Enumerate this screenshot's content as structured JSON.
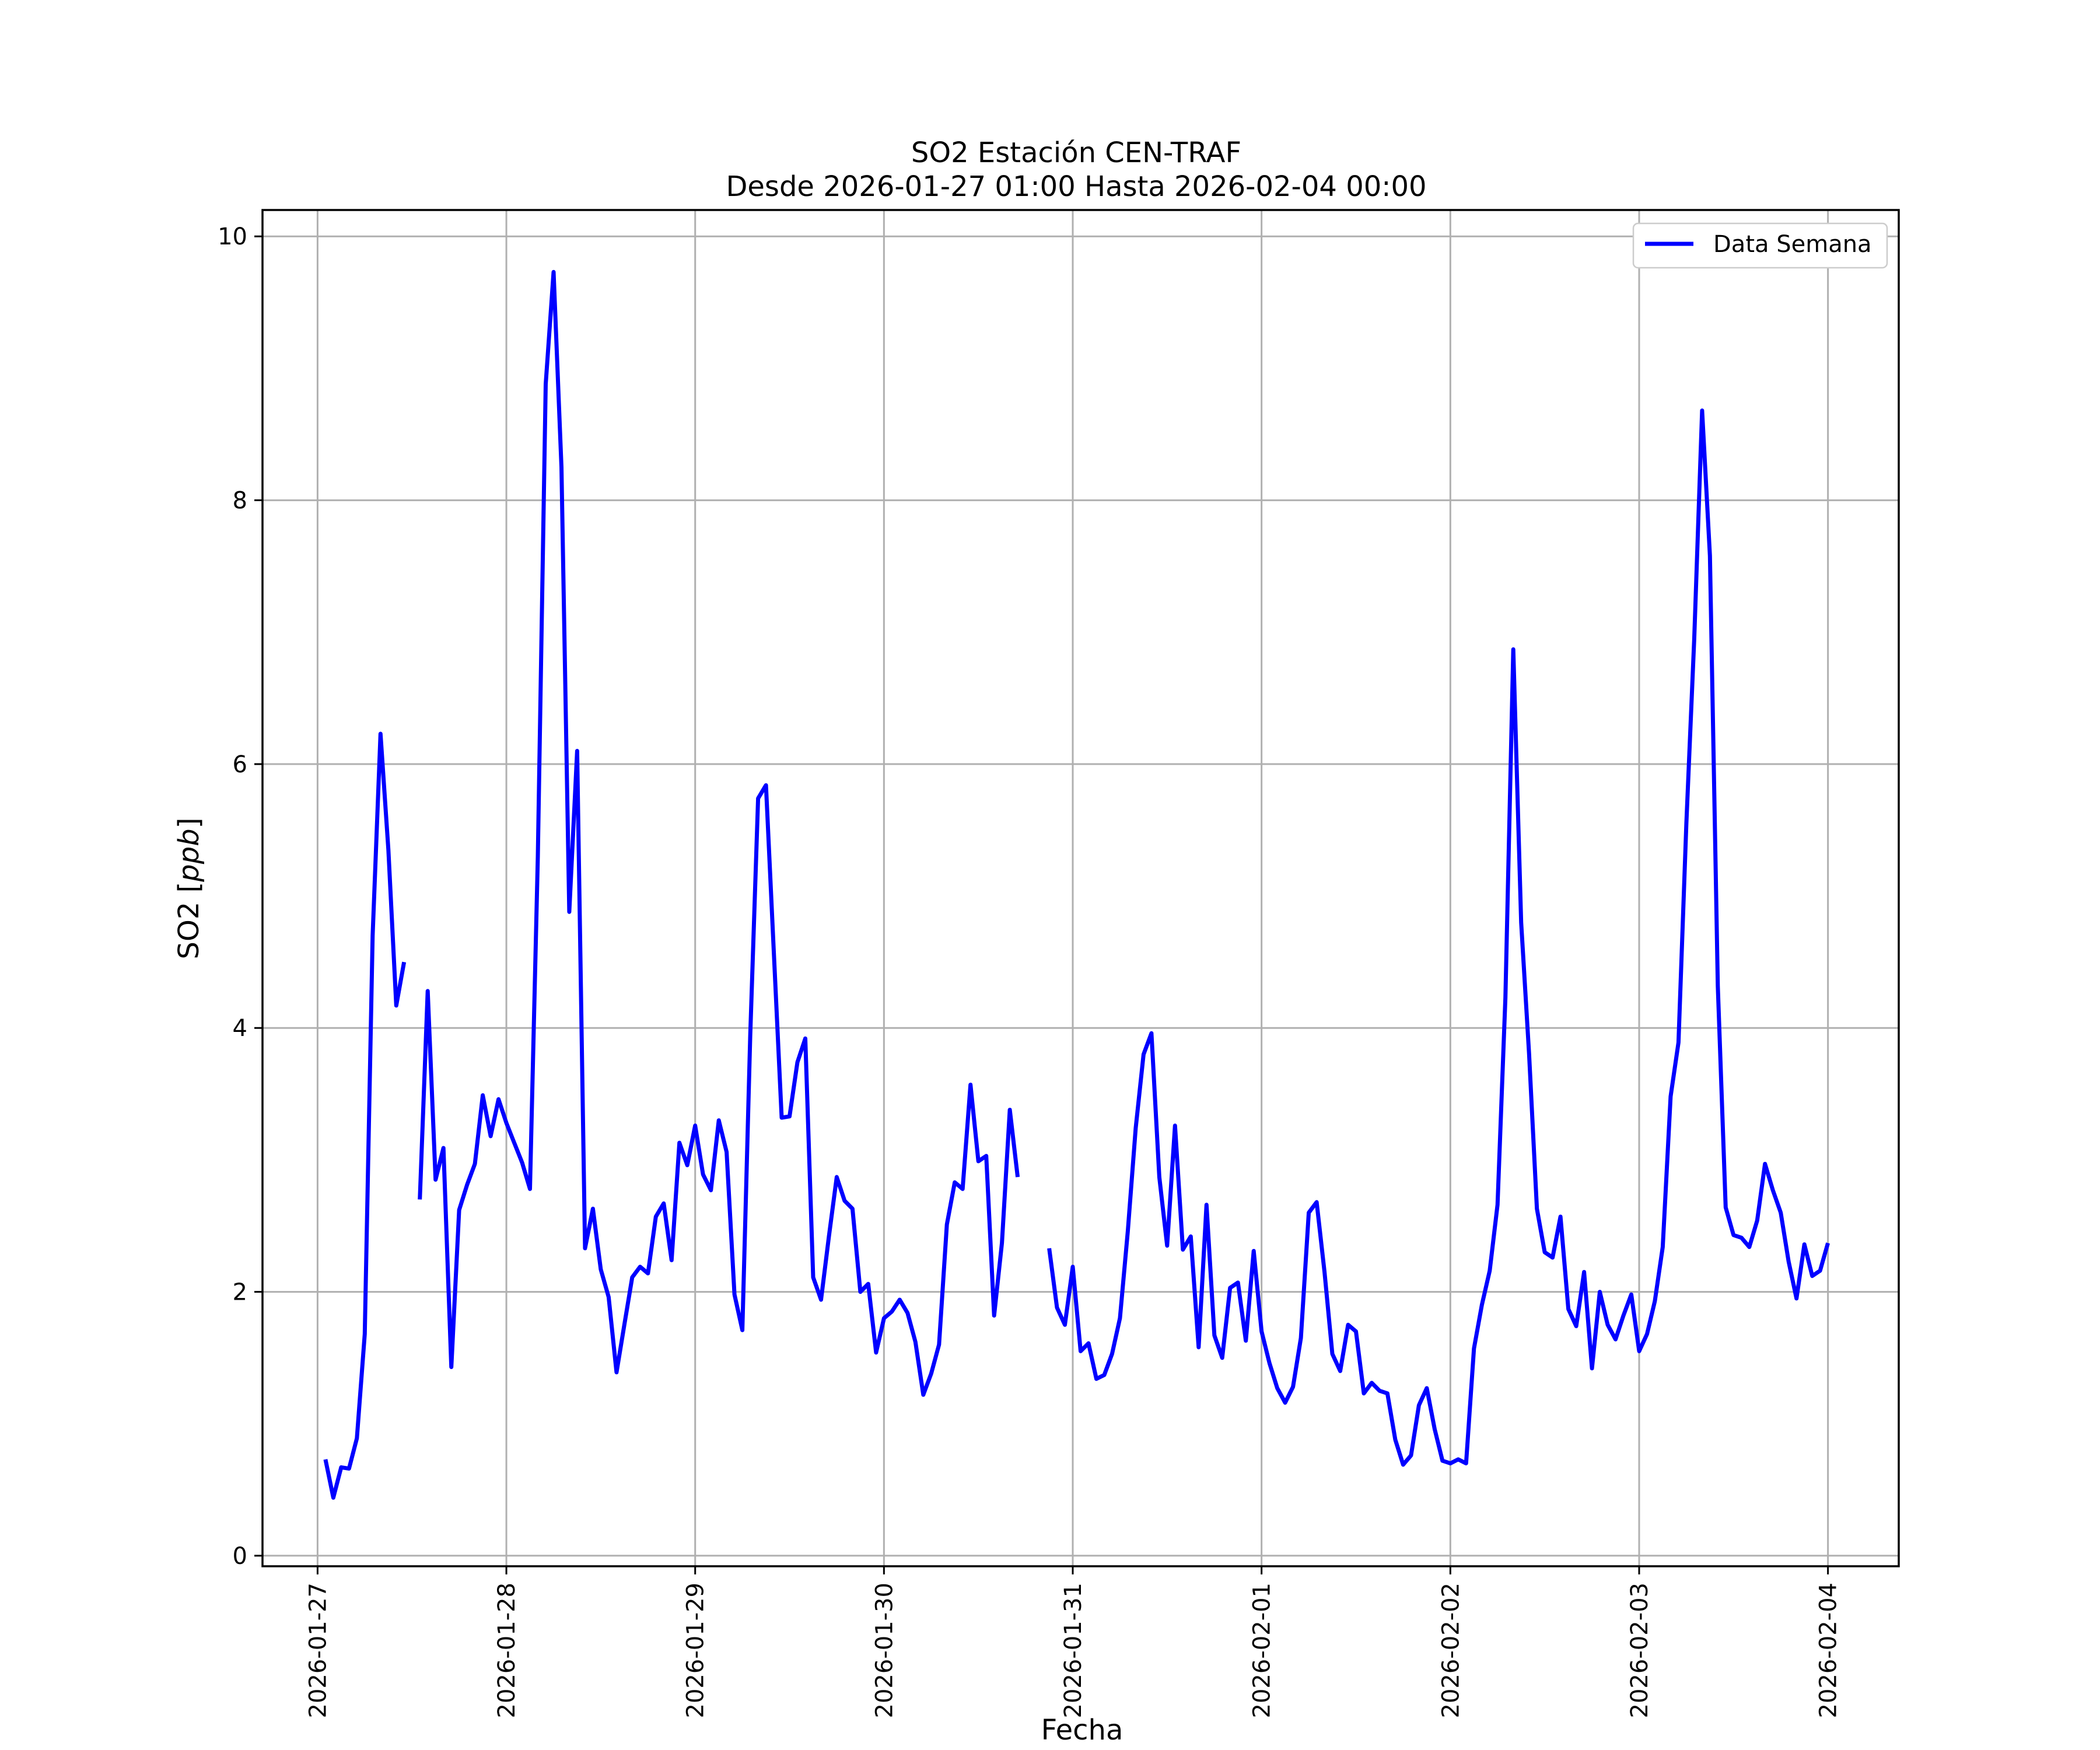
{
  "chart_data": {
    "type": "line",
    "title_lines": [
      "SO2 Estación CEN-TRAF",
      "Desde 2026-01-27 01:00 Hasta 2026-02-04 00:00"
    ],
    "xlabel": "Fecha",
    "ylabel": "SO2 [ppb]",
    "ylim": [
      -0.08,
      10.2
    ],
    "yticks": [
      0,
      2,
      4,
      6,
      8,
      10
    ],
    "xlim": [
      "2026-01-26 17:00",
      "2026-02-04 09:00"
    ],
    "xticks": [
      "2026-01-27",
      "2026-01-28",
      "2026-01-29",
      "2026-01-30",
      "2026-01-31",
      "2026-02-01",
      "2026-02-02",
      "2026-02-03",
      "2026-02-04"
    ],
    "grid": true,
    "legend_position": "upper right",
    "colors": {
      "series": "#0000ff"
    },
    "series": [
      {
        "name": "Data Semana",
        "points": [
          [
            "2026-01-27 01:00",
            0.73
          ],
          [
            "2026-01-27 02:00",
            0.44
          ],
          [
            "2026-01-27 03:00",
            0.67
          ],
          [
            "2026-01-27 04:00",
            0.66
          ],
          [
            "2026-01-27 05:00",
            0.89
          ],
          [
            "2026-01-27 06:00",
            1.68
          ],
          [
            "2026-01-27 07:00",
            4.7
          ],
          [
            "2026-01-27 08:00",
            6.23
          ],
          [
            "2026-01-27 09:00",
            5.35
          ],
          [
            "2026-01-27 10:00",
            4.17
          ],
          [
            "2026-01-27 11:00",
            4.5
          ],
          [
            "2026-01-27 12:00",
            null
          ],
          [
            "2026-01-27 13:00",
            2.7
          ],
          [
            "2026-01-27 14:00",
            4.28
          ],
          [
            "2026-01-27 15:00",
            2.85
          ],
          [
            "2026-01-27 16:00",
            3.09
          ],
          [
            "2026-01-27 17:00",
            1.43
          ],
          [
            "2026-01-27 18:00",
            2.62
          ],
          [
            "2026-01-27 19:00",
            2.81
          ],
          [
            "2026-01-27 20:00",
            2.97
          ],
          [
            "2026-01-27 21:00",
            3.49
          ],
          [
            "2026-01-27 22:00",
            3.18
          ],
          [
            "2026-01-27 23:00",
            3.46
          ],
          [
            "2026-01-28 00:00",
            3.28
          ],
          [
            "2026-01-28 01:00",
            3.13
          ],
          [
            "2026-01-28 02:00",
            2.98
          ],
          [
            "2026-01-28 03:00",
            2.78
          ],
          [
            "2026-01-28 04:00",
            5.3
          ],
          [
            "2026-01-28 05:00",
            8.88
          ],
          [
            "2026-01-28 06:00",
            9.73
          ],
          [
            "2026-01-28 07:00",
            8.25
          ],
          [
            "2026-01-28 08:00",
            4.88
          ],
          [
            "2026-01-28 09:00",
            6.1
          ],
          [
            "2026-01-28 10:00",
            2.33
          ],
          [
            "2026-01-28 11:00",
            2.63
          ],
          [
            "2026-01-28 12:00",
            2.17
          ],
          [
            "2026-01-28 13:00",
            1.96
          ],
          [
            "2026-01-28 14:00",
            1.39
          ],
          [
            "2026-01-28 15:00",
            1.75
          ],
          [
            "2026-01-28 16:00",
            2.11
          ],
          [
            "2026-01-28 17:00",
            2.19
          ],
          [
            "2026-01-28 18:00",
            2.14
          ],
          [
            "2026-01-28 19:00",
            2.57
          ],
          [
            "2026-01-28 20:00",
            2.67
          ],
          [
            "2026-01-28 21:00",
            2.24
          ],
          [
            "2026-01-28 22:00",
            3.13
          ],
          [
            "2026-01-28 23:00",
            2.96
          ],
          [
            "2026-01-29 00:00",
            3.26
          ],
          [
            "2026-01-29 01:00",
            2.89
          ],
          [
            "2026-01-29 02:00",
            2.77
          ],
          [
            "2026-01-29 03:00",
            3.3
          ],
          [
            "2026-01-29 04:00",
            3.06
          ],
          [
            "2026-01-29 05:00",
            1.98
          ],
          [
            "2026-01-29 06:00",
            1.71
          ],
          [
            "2026-01-29 07:00",
            3.94
          ],
          [
            "2026-01-29 08:00",
            5.74
          ],
          [
            "2026-01-29 09:00",
            5.84
          ],
          [
            "2026-01-29 10:00",
            4.57
          ],
          [
            "2026-01-29 11:00",
            3.32
          ],
          [
            "2026-01-29 12:00",
            3.33
          ],
          [
            "2026-01-29 13:00",
            3.74
          ],
          [
            "2026-01-29 14:00",
            3.92
          ],
          [
            "2026-01-29 15:00",
            2.11
          ],
          [
            "2026-01-29 16:00",
            1.94
          ],
          [
            "2026-01-29 17:00",
            2.42
          ],
          [
            "2026-01-29 18:00",
            2.87
          ],
          [
            "2026-01-29 19:00",
            2.69
          ],
          [
            "2026-01-29 20:00",
            2.63
          ],
          [
            "2026-01-29 21:00",
            2.0
          ],
          [
            "2026-01-29 22:00",
            2.06
          ],
          [
            "2026-01-29 23:00",
            1.54
          ],
          [
            "2026-01-30 00:00",
            1.8
          ],
          [
            "2026-01-30 01:00",
            1.85
          ],
          [
            "2026-01-30 02:00",
            1.94
          ],
          [
            "2026-01-30 03:00",
            1.84
          ],
          [
            "2026-01-30 04:00",
            1.62
          ],
          [
            "2026-01-30 05:00",
            1.22
          ],
          [
            "2026-01-30 06:00",
            1.38
          ],
          [
            "2026-01-30 07:00",
            1.6
          ],
          [
            "2026-01-30 08:00",
            2.51
          ],
          [
            "2026-01-30 09:00",
            2.83
          ],
          [
            "2026-01-30 10:00",
            2.78
          ],
          [
            "2026-01-30 11:00",
            3.57
          ],
          [
            "2026-01-30 12:00",
            2.99
          ],
          [
            "2026-01-30 13:00",
            3.03
          ],
          [
            "2026-01-30 14:00",
            1.82
          ],
          [
            "2026-01-30 15:00",
            2.37
          ],
          [
            "2026-01-30 16:00",
            3.38
          ],
          [
            "2026-01-30 17:00",
            2.87
          ],
          [
            "2026-01-30 18:00",
            null
          ],
          [
            "2026-01-30 19:00",
            null
          ],
          [
            "2026-01-30 20:00",
            null
          ],
          [
            "2026-01-30 21:00",
            2.33
          ],
          [
            "2026-01-30 22:00",
            1.88
          ],
          [
            "2026-01-30 23:00",
            1.75
          ],
          [
            "2026-01-31 00:00",
            2.19
          ],
          [
            "2026-01-31 01:00",
            1.55
          ],
          [
            "2026-01-31 02:00",
            1.61
          ],
          [
            "2026-01-31 03:00",
            1.34
          ],
          [
            "2026-01-31 04:00",
            1.37
          ],
          [
            "2026-01-31 05:00",
            1.53
          ],
          [
            "2026-01-31 06:00",
            1.8
          ],
          [
            "2026-01-31 07:00",
            2.46
          ],
          [
            "2026-01-31 08:00",
            3.24
          ],
          [
            "2026-01-31 09:00",
            3.8
          ],
          [
            "2026-01-31 10:00",
            3.96
          ],
          [
            "2026-01-31 11:00",
            2.87
          ],
          [
            "2026-01-31 12:00",
            2.35
          ],
          [
            "2026-01-31 13:00",
            3.26
          ],
          [
            "2026-01-31 14:00",
            2.32
          ],
          [
            "2026-01-31 15:00",
            2.42
          ],
          [
            "2026-01-31 16:00",
            1.58
          ],
          [
            "2026-01-31 17:00",
            2.66
          ],
          [
            "2026-01-31 18:00",
            1.67
          ],
          [
            "2026-01-31 19:00",
            1.5
          ],
          [
            "2026-01-31 20:00",
            2.03
          ],
          [
            "2026-01-31 21:00",
            2.07
          ],
          [
            "2026-01-31 22:00",
            1.63
          ],
          [
            "2026-01-31 23:00",
            2.31
          ],
          [
            "2026-02-01 00:00",
            1.7
          ],
          [
            "2026-02-01 01:00",
            1.46
          ],
          [
            "2026-02-01 02:00",
            1.27
          ],
          [
            "2026-02-01 03:00",
            1.16
          ],
          [
            "2026-02-01 04:00",
            1.28
          ],
          [
            "2026-02-01 05:00",
            1.65
          ],
          [
            "2026-02-01 06:00",
            2.6
          ],
          [
            "2026-02-01 07:00",
            2.68
          ],
          [
            "2026-02-01 08:00",
            2.15
          ],
          [
            "2026-02-01 09:00",
            1.53
          ],
          [
            "2026-02-01 10:00",
            1.4
          ],
          [
            "2026-02-01 11:00",
            1.75
          ],
          [
            "2026-02-01 12:00",
            1.7
          ],
          [
            "2026-02-01 13:00",
            1.23
          ],
          [
            "2026-02-01 14:00",
            1.31
          ],
          [
            "2026-02-01 15:00",
            1.25
          ],
          [
            "2026-02-01 16:00",
            1.23
          ],
          [
            "2026-02-01 17:00",
            0.88
          ],
          [
            "2026-02-01 18:00",
            0.69
          ],
          [
            "2026-02-01 19:00",
            0.76
          ],
          [
            "2026-02-01 20:00",
            1.14
          ],
          [
            "2026-02-01 21:00",
            1.27
          ],
          [
            "2026-02-01 22:00",
            0.96
          ],
          [
            "2026-02-01 23:00",
            0.72
          ],
          [
            "2026-02-02 00:00",
            0.7
          ],
          [
            "2026-02-02 01:00",
            0.73
          ],
          [
            "2026-02-02 02:00",
            0.7
          ],
          [
            "2026-02-02 03:00",
            1.57
          ],
          [
            "2026-02-02 04:00",
            1.9
          ],
          [
            "2026-02-02 05:00",
            2.16
          ],
          [
            "2026-02-02 06:00",
            2.66
          ],
          [
            "2026-02-02 07:00",
            4.23
          ],
          [
            "2026-02-02 08:00",
            6.87
          ],
          [
            "2026-02-02 09:00",
            4.8
          ],
          [
            "2026-02-02 10:00",
            3.81
          ],
          [
            "2026-02-02 11:00",
            2.63
          ],
          [
            "2026-02-02 12:00",
            2.3
          ],
          [
            "2026-02-02 13:00",
            2.26
          ],
          [
            "2026-02-02 14:00",
            2.57
          ],
          [
            "2026-02-02 15:00",
            1.87
          ],
          [
            "2026-02-02 16:00",
            1.74
          ],
          [
            "2026-02-02 17:00",
            2.15
          ],
          [
            "2026-02-02 18:00",
            1.42
          ],
          [
            "2026-02-02 19:00",
            2.0
          ],
          [
            "2026-02-02 20:00",
            1.75
          ],
          [
            "2026-02-02 21:00",
            1.64
          ],
          [
            "2026-02-02 22:00",
            1.82
          ],
          [
            "2026-02-02 23:00",
            1.98
          ],
          [
            "2026-02-03 00:00",
            1.55
          ],
          [
            "2026-02-03 01:00",
            1.68
          ],
          [
            "2026-02-03 02:00",
            1.93
          ],
          [
            "2026-02-03 03:00",
            2.34
          ],
          [
            "2026-02-03 04:00",
            3.48
          ],
          [
            "2026-02-03 05:00",
            3.89
          ],
          [
            "2026-02-03 06:00",
            5.55
          ],
          [
            "2026-02-03 07:00",
            6.95
          ],
          [
            "2026-02-03 08:00",
            8.68
          ],
          [
            "2026-02-03 09:00",
            7.58
          ],
          [
            "2026-02-03 10:00",
            4.32
          ],
          [
            "2026-02-03 11:00",
            2.64
          ],
          [
            "2026-02-03 12:00",
            2.43
          ],
          [
            "2026-02-03 13:00",
            2.41
          ],
          [
            "2026-02-03 14:00",
            2.34
          ],
          [
            "2026-02-03 15:00",
            2.54
          ],
          [
            "2026-02-03 16:00",
            2.97
          ],
          [
            "2026-02-03 17:00",
            2.77
          ],
          [
            "2026-02-03 18:00",
            2.6
          ],
          [
            "2026-02-03 19:00",
            2.23
          ],
          [
            "2026-02-03 20:00",
            1.95
          ],
          [
            "2026-02-03 21:00",
            2.36
          ],
          [
            "2026-02-03 22:00",
            2.12
          ],
          [
            "2026-02-03 23:00",
            2.16
          ],
          [
            "2026-02-04 00:00",
            2.37
          ]
        ]
      }
    ]
  }
}
